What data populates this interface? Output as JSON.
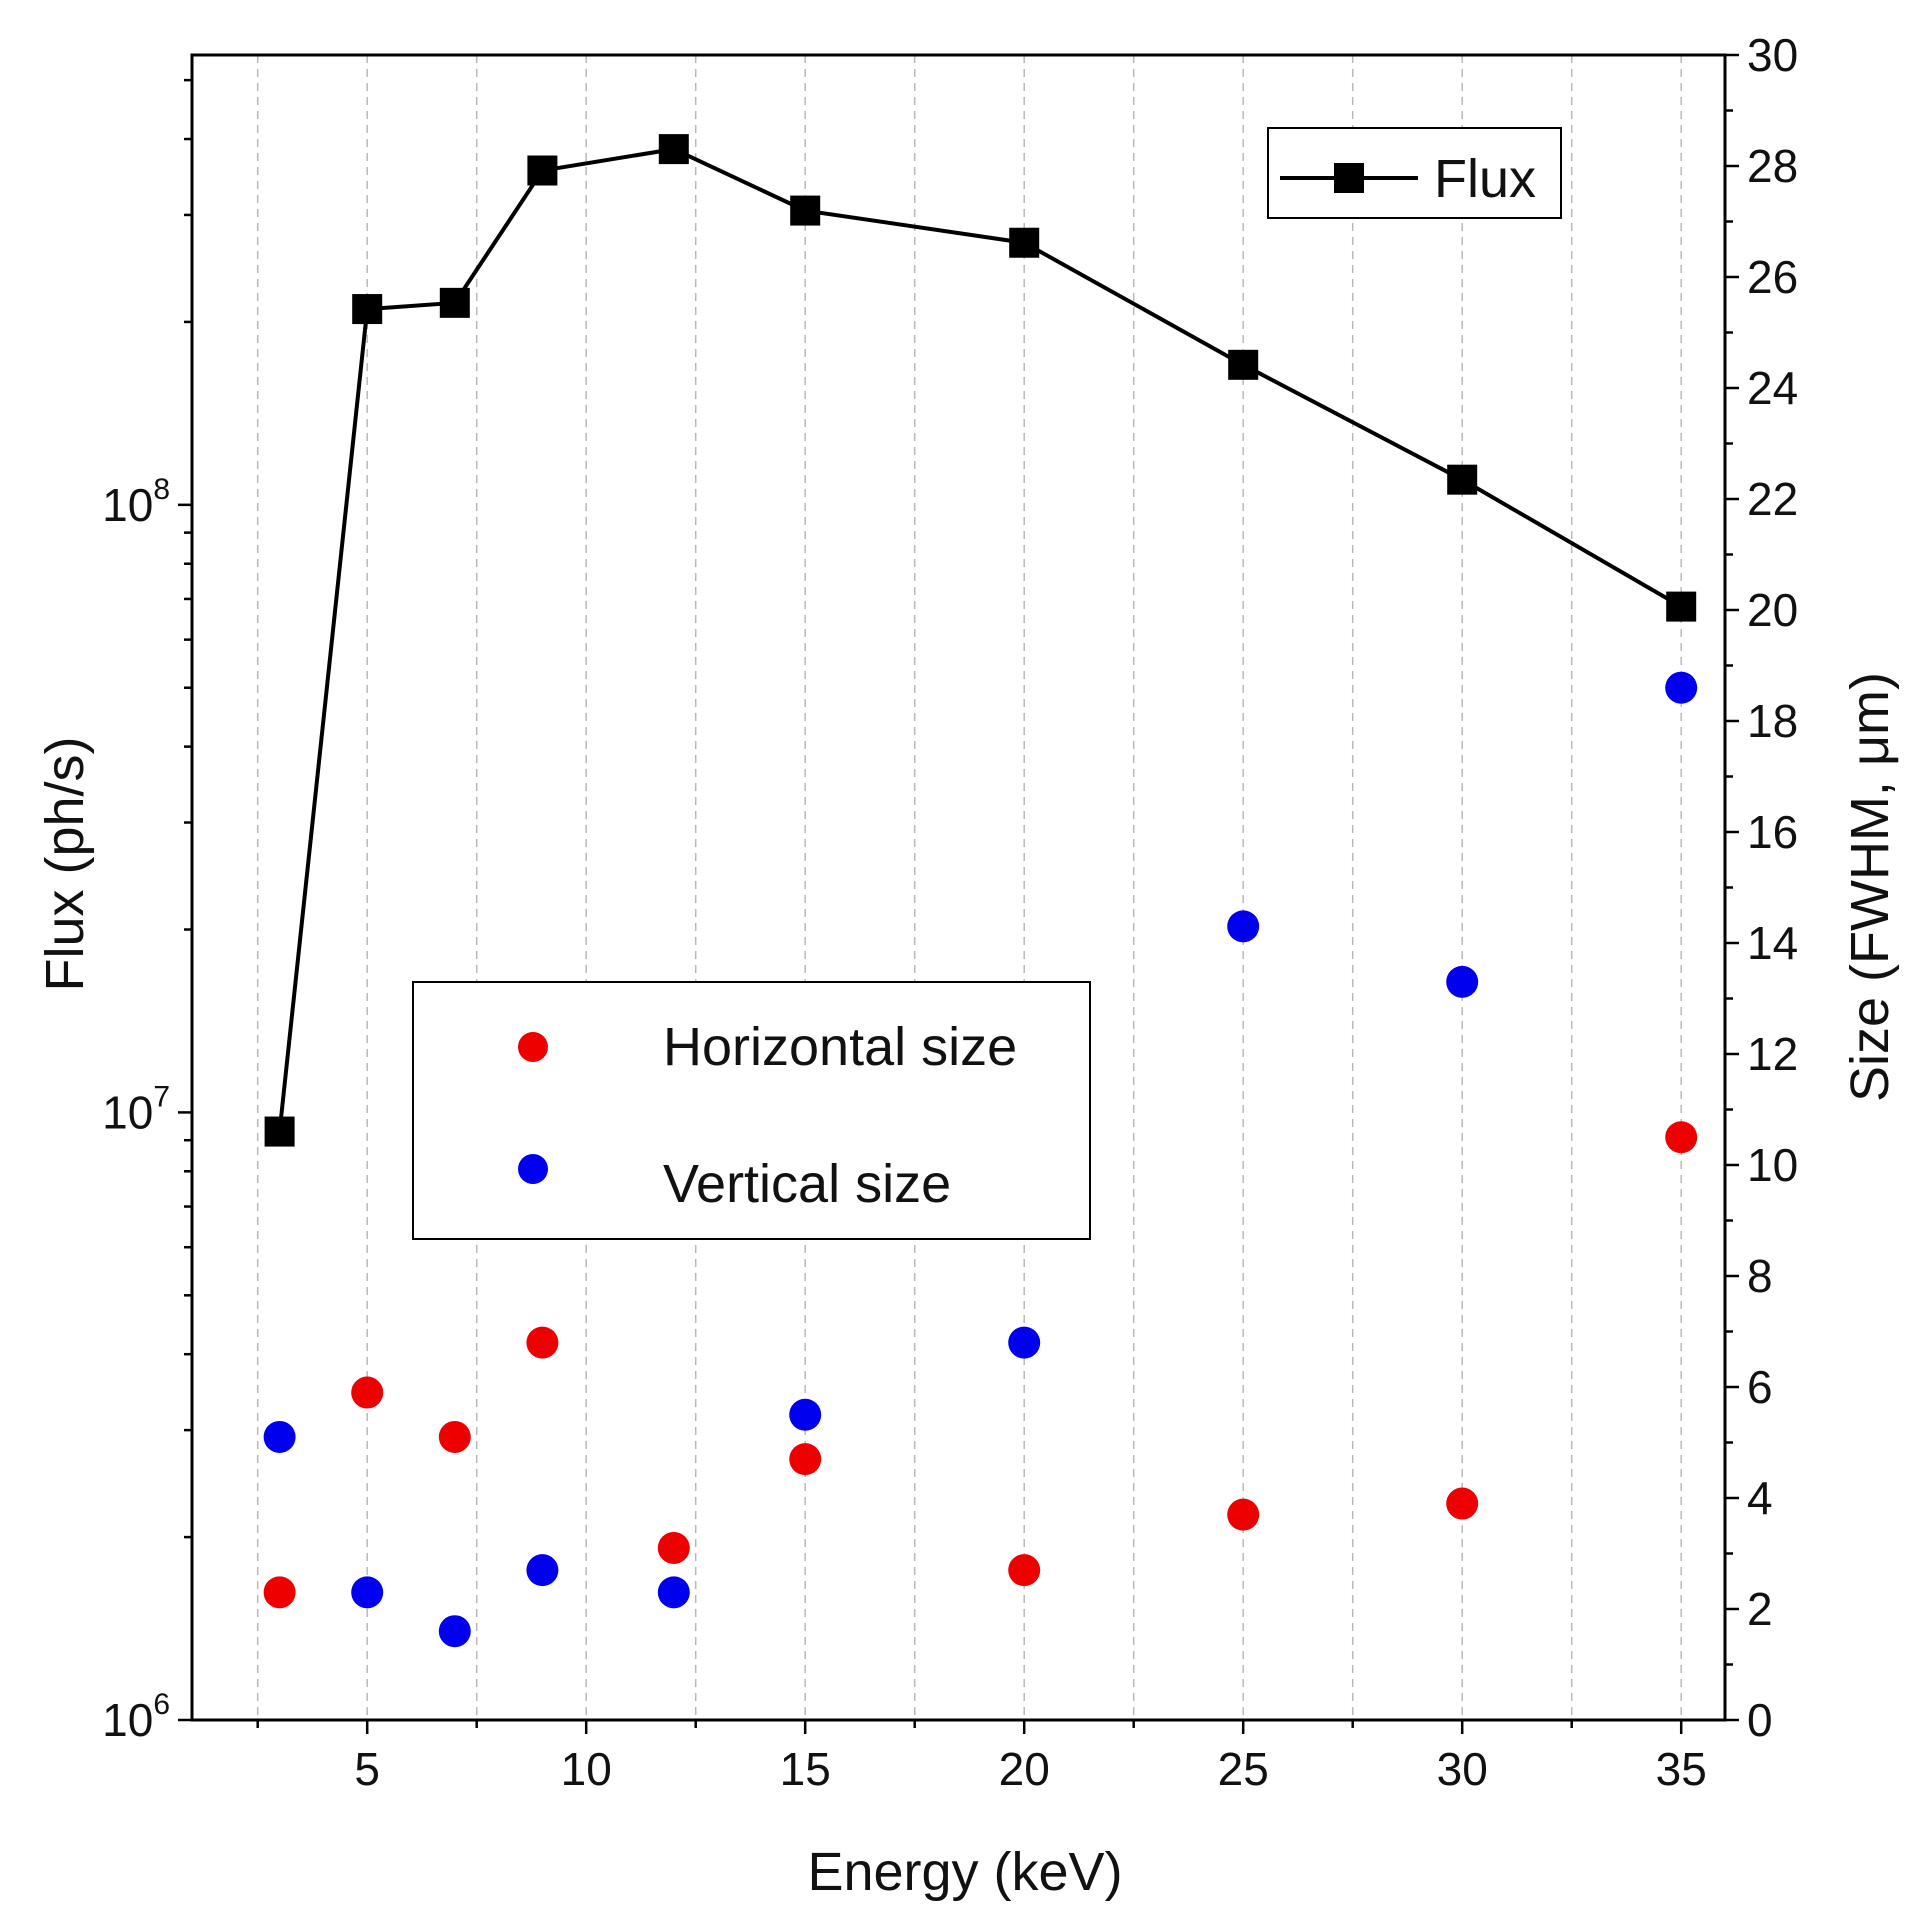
{
  "chart_data": {
    "type": "scatter",
    "x": [
      3,
      5,
      7,
      9,
      12,
      15,
      20,
      25,
      30,
      35
    ],
    "xlabel": "Energy (keV)",
    "xlim": [
      1,
      36
    ],
    "xticks": [
      5,
      10,
      15,
      20,
      25,
      30,
      35
    ],
    "xtick_labels": [
      "5",
      "10",
      "15",
      "20",
      "25",
      "30",
      "35"
    ],
    "ylabel_left": "Flux (ph/s)",
    "ylim_left": [
      1000000,
      550000000
    ],
    "yscale_left": "log",
    "yticks_left": [
      {
        "base": "10",
        "exp": "6",
        "value": 1000000
      },
      {
        "base": "10",
        "exp": "7",
        "value": 10000000
      },
      {
        "base": "10",
        "exp": "8",
        "value": 100000000
      }
    ],
    "ylabel_right": "Size (FWHM, μm)",
    "ylim_right": [
      0,
      30
    ],
    "yticks_right": [
      "0",
      "2",
      "4",
      "6",
      "8",
      "10",
      "12",
      "14",
      "16",
      "18",
      "20",
      "22",
      "24",
      "26",
      "28",
      "30"
    ],
    "grid": "vertical dashed",
    "series": [
      {
        "name": "Flux",
        "axis": "left",
        "kind": "line+square",
        "color": "#000000",
        "values": [
          9300000,
          210000000,
          215000000,
          355000000,
          385000000,
          305000000,
          270000000,
          170000000,
          110000000,
          68000000
        ]
      },
      {
        "name": "Horizontal size",
        "axis": "right",
        "kind": "circle",
        "color": "#ee0000",
        "values": [
          2.3,
          5.9,
          5.1,
          6.8,
          3.1,
          4.7,
          2.7,
          3.7,
          3.9,
          10.5
        ]
      },
      {
        "name": "Vertical size",
        "axis": "right",
        "kind": "circle",
        "color": "#0000ee",
        "values": [
          5.1,
          2.3,
          1.6,
          2.7,
          2.3,
          5.5,
          6.8,
          14.3,
          13.3,
          18.6
        ]
      }
    ],
    "legends": [
      {
        "placement": "top-right",
        "entries": [
          "Flux"
        ]
      },
      {
        "placement": "center-left",
        "entries": [
          "Horizontal size",
          "Vertical size"
        ]
      }
    ]
  }
}
